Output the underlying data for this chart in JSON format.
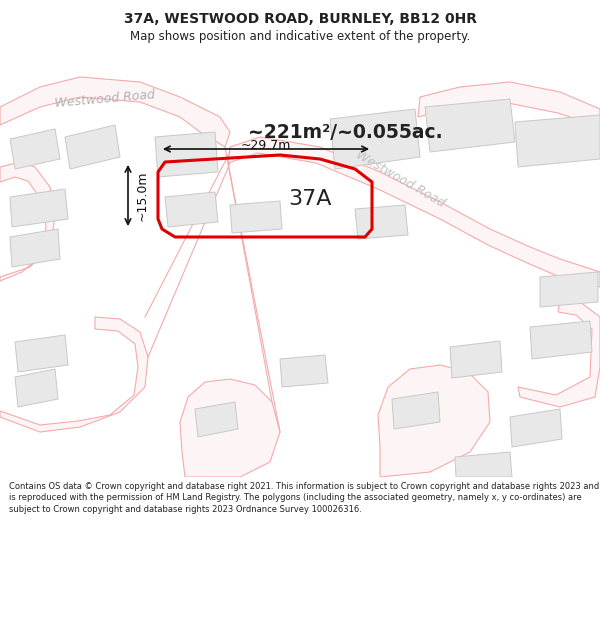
{
  "title": "37A, WESTWOOD ROAD, BURNLEY, BB12 0HR",
  "subtitle": "Map shows position and indicative extent of the property.",
  "footer": "Contains OS data © Crown copyright and database right 2021. This information is subject to Crown copyright and database rights 2023 and is reproduced with the permission of HM Land Registry. The polygons (including the associated geometry, namely x, y co-ordinates) are subject to Crown copyright and database rights 2023 Ordnance Survey 100026316.",
  "area_label": "~221m²/~0.055ac.",
  "property_label": "37A",
  "width_label": "~29.7m",
  "height_label": "~15.0m",
  "bg_color": "#ffffff",
  "map_bg": "#ffffff",
  "road_line_color": "#f5aaaa",
  "building_fill": "#e8e8e8",
  "building_edge": "#c8c8c8",
  "highlight_color": "#dd0000",
  "road_label_color": "#c0c0c0",
  "text_color": "#222222",
  "dim_color": "#111111",
  "road_name1": "Westwood Road",
  "road_name2": "Westwood Road"
}
